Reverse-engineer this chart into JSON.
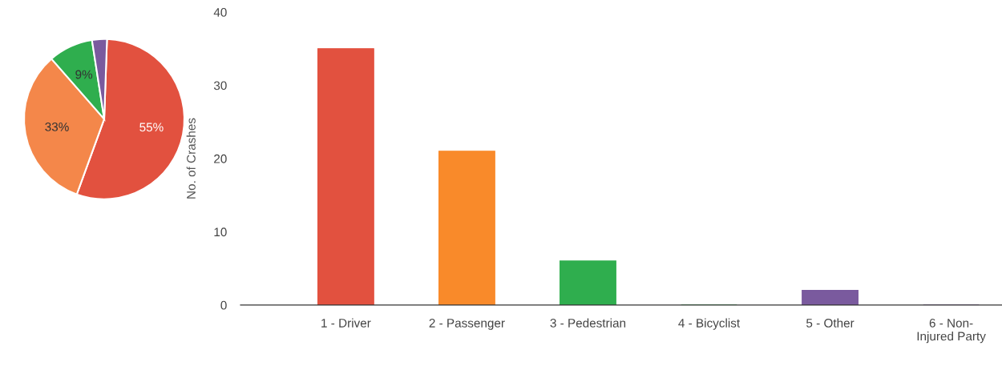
{
  "chart_data": [
    {
      "type": "pie",
      "categories": [
        null,
        null,
        null,
        null
      ],
      "values": [
        55,
        33,
        9,
        3
      ],
      "colors": [
        "#e2513f",
        "#f4874a",
        "#2fae4e",
        "#7a5a9e"
      ],
      "value_labels": [
        "55%",
        "33%",
        "9%",
        null
      ]
    },
    {
      "type": "bar",
      "categories": [
        "1 - Driver",
        "2 - Passenger",
        "3 - Pedestrian",
        "4 - Bicyclist",
        "5 - Other",
        "6 - Non-\nInjured Party"
      ],
      "values": [
        35,
        21,
        6,
        0,
        2,
        0
      ],
      "colors": [
        "#e2513f",
        "#f98a2a",
        "#2fae4e",
        "#2fae4e",
        "#7a5a9e",
        "#7a5a9e"
      ],
      "ylabel": "No. of Crashes",
      "ylim": [
        0,
        40
      ],
      "yticks": [
        0,
        10,
        20,
        30,
        40
      ],
      "grid": false,
      "legend": false
    }
  ]
}
